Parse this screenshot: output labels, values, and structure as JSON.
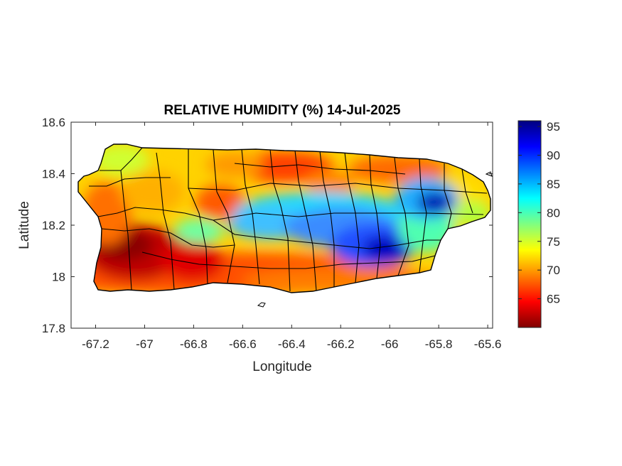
{
  "chart_data": {
    "type": "heatmap",
    "title": "RELATIVE HUMIDITY (%) 14-Jul-2025",
    "xlabel": "Longitude",
    "ylabel": "Latitude",
    "xlim": [
      -67.3,
      -65.58
    ],
    "ylim": [
      17.8,
      18.6
    ],
    "xticks": [
      -67.2,
      -67,
      -66.8,
      -66.6,
      -66.4,
      -66.2,
      -66,
      -65.8,
      -65.6
    ],
    "xtick_labels": [
      "-67.2",
      "-67",
      "-66.8",
      "-66.6",
      "-66.4",
      "-66.2",
      "-66",
      "-65.8",
      "-65.6"
    ],
    "yticks": [
      17.8,
      18,
      18.2,
      18.4,
      18.6
    ],
    "ytick_labels": [
      "17.8",
      "18",
      "18.2",
      "18.4",
      "18.6"
    ],
    "colorbar": {
      "colormap": "jet",
      "range": [
        60,
        96
      ],
      "ticks": [
        65,
        70,
        75,
        80,
        85,
        90,
        95
      ],
      "tick_labels": [
        "65",
        "70",
        "75",
        "80",
        "85",
        "90",
        "95"
      ]
    },
    "grid": false,
    "features": {
      "humid_east_center": {
        "lon": -65.8,
        "lat": 18.28,
        "value": 95
      },
      "humid_central_band": {
        "from_lon": -66.65,
        "to_lon": -65.95,
        "lat": 18.13,
        "value": 88
      },
      "dry_southwest_center": {
        "lon": -67.05,
        "lat": 18.12,
        "value": 60
      },
      "typical_north_coast": 68,
      "typical_south_coast": 66
    }
  }
}
